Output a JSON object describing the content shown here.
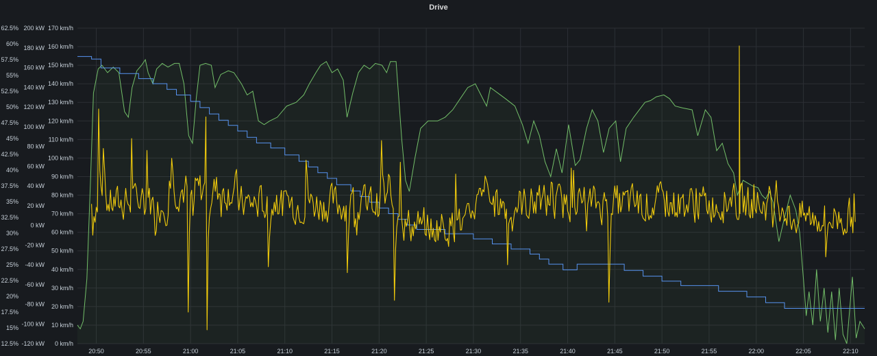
{
  "panel": {
    "title": "Drive"
  },
  "colors": {
    "background": "#181b1f",
    "grid": "#2c2f35",
    "tick_text": "#c7d0d9",
    "power": "#f2cc0c",
    "speed": "#73bf69",
    "battery": "#5794f2"
  },
  "chart_data": {
    "type": "line",
    "title": "Drive",
    "grid": true,
    "legend": "none",
    "x_ticks": [
      "20:50",
      "20:55",
      "21:00",
      "21:05",
      "21:10",
      "21:15",
      "21:20",
      "21:25",
      "21:30",
      "21:35",
      "21:40",
      "21:45",
      "21:50",
      "21:55",
      "22:00",
      "22:05",
      "22:10"
    ],
    "x_range": [
      "20:48",
      "22:11.5"
    ],
    "axes": {
      "battery_percent": {
        "ticks": [
          "62.5%",
          "60%",
          "57.5%",
          "55%",
          "52.5%",
          "50%",
          "47.5%",
          "45%",
          "42.5%",
          "40%",
          "37.5%",
          "35%",
          "32.5%",
          "30%",
          "27.5%",
          "25%",
          "22.5%",
          "20%",
          "17.5%",
          "15%",
          "12.5%"
        ],
        "range": [
          12.5,
          62.5
        ],
        "unit": "%"
      },
      "power": {
        "ticks": [
          "200 kW",
          "180 kW",
          "160 kW",
          "140 kW",
          "120 kW",
          "100 kW",
          "80 kW",
          "60 kW",
          "40 kW",
          "20 kW",
          "0 kW",
          "-20 kW",
          "-40 kW",
          "-60 kW",
          "-80 kW",
          "-100 kW",
          "-120 kW"
        ],
        "range": [
          -120,
          200
        ],
        "unit": "kW"
      },
      "speed": {
        "ticks": [
          "170 km/h",
          "160 km/h",
          "150 km/h",
          "140 km/h",
          "130 km/h",
          "120 km/h",
          "110 km/h",
          "100 km/h",
          "90 km/h",
          "80 km/h",
          "70 km/h",
          "60 km/h",
          "50 km/h",
          "40 km/h",
          "30 km/h",
          "20 km/h",
          "10 km/h",
          "0 km/h"
        ],
        "range": [
          0,
          170
        ],
        "unit": "km/h"
      }
    },
    "series": [
      {
        "key": "battery",
        "axis": "battery_percent",
        "color": "#5794f2",
        "shape": "step",
        "points": [
          [
            "20:48",
            58
          ],
          [
            "20:49.5",
            58
          ],
          [
            "20:49.5",
            57.6
          ],
          [
            "20:50.5",
            57.6
          ],
          [
            "20:50.5",
            56.2
          ],
          [
            "20:52.5",
            56.2
          ],
          [
            "20:52.5",
            55.3
          ],
          [
            "20:54.5",
            55.3
          ],
          [
            "20:54.5",
            54.5
          ],
          [
            "20:56",
            54.5
          ],
          [
            "20:56",
            53.7
          ],
          [
            "20:57.5",
            53.7
          ],
          [
            "20:57.5",
            52.8
          ],
          [
            "20:58.5",
            52.8
          ],
          [
            "20:58.5",
            51.9
          ],
          [
            "21:00",
            51.9
          ],
          [
            "21:00",
            50.9
          ],
          [
            "21:01",
            50.9
          ],
          [
            "21:01",
            49.9
          ],
          [
            "21:02",
            49.9
          ],
          [
            "21:02",
            48.9
          ],
          [
            "21:03",
            48.9
          ],
          [
            "21:03",
            47.9
          ],
          [
            "21:04",
            47.9
          ],
          [
            "21:04",
            47.1
          ],
          [
            "21:05",
            47.1
          ],
          [
            "21:05",
            46.2
          ],
          [
            "21:06",
            46.2
          ],
          [
            "21:06",
            45.2
          ],
          [
            "21:07",
            45.2
          ],
          [
            "21:07",
            44.3
          ],
          [
            "21:08.5",
            44.3
          ],
          [
            "21:08.5",
            43.5
          ],
          [
            "21:10",
            43.5
          ],
          [
            "21:10",
            42.4
          ],
          [
            "21:11.5",
            42.4
          ],
          [
            "21:11.5",
            41.4
          ],
          [
            "21:12.5",
            41.4
          ],
          [
            "21:12.5",
            40.5
          ],
          [
            "21:13.5",
            40.5
          ],
          [
            "21:13.5",
            39.6
          ],
          [
            "21:14.5",
            39.6
          ],
          [
            "21:14.5",
            38.7
          ],
          [
            "21:15.5",
            38.7
          ],
          [
            "21:15.5",
            37.7
          ],
          [
            "21:17",
            37.7
          ],
          [
            "21:17",
            36.7
          ],
          [
            "21:18",
            36.7
          ],
          [
            "21:18",
            35.8
          ],
          [
            "21:19",
            35.8
          ],
          [
            "21:19",
            34.9
          ],
          [
            "21:20",
            34.9
          ],
          [
            "21:20",
            34.0
          ],
          [
            "21:21",
            34.0
          ],
          [
            "21:21",
            33.1
          ],
          [
            "21:22",
            33.1
          ],
          [
            "21:22",
            32.2
          ],
          [
            "21:23",
            32.2
          ],
          [
            "21:23",
            31.3
          ],
          [
            "21:24",
            31.3
          ],
          [
            "21:24",
            30.6
          ],
          [
            "21:27",
            30.6
          ],
          [
            "21:27",
            29.9
          ],
          [
            "21:30",
            29.9
          ],
          [
            "21:30",
            29.1
          ],
          [
            "21:32",
            29.1
          ],
          [
            "21:32",
            28.3
          ],
          [
            "21:34",
            28.3
          ],
          [
            "21:34",
            27.5
          ],
          [
            "21:36",
            27.5
          ],
          [
            "21:36",
            26.7
          ],
          [
            "21:37",
            26.7
          ],
          [
            "21:37",
            25.9
          ],
          [
            "21:38",
            25.9
          ],
          [
            "21:38",
            25.1
          ],
          [
            "21:39.5",
            25.1
          ],
          [
            "21:39.5",
            24.2
          ],
          [
            "21:41",
            24.2
          ],
          [
            "21:41",
            25.1
          ],
          [
            "21:46",
            25.1
          ],
          [
            "21:46",
            24.1
          ],
          [
            "21:48",
            24.1
          ],
          [
            "21:48",
            23.2
          ],
          [
            "21:50",
            23.2
          ],
          [
            "21:50",
            22.4
          ],
          [
            "21:52",
            22.4
          ],
          [
            "21:52",
            21.7
          ],
          [
            "21:56",
            21.7
          ],
          [
            "21:56",
            20.8
          ],
          [
            "21:59",
            20.8
          ],
          [
            "21:59",
            19.9
          ],
          [
            "22:01",
            19.9
          ],
          [
            "22:01",
            19.0
          ],
          [
            "22:03",
            19.0
          ],
          [
            "22:03",
            18.1
          ],
          [
            "22:11.5",
            18.1
          ]
        ]
      },
      {
        "key": "speed",
        "axis": "speed",
        "color": "#73bf69",
        "shape": "line",
        "points": [
          [
            "20:48",
            10
          ],
          [
            "20:48.3",
            8
          ],
          [
            "20:48.6",
            12
          ],
          [
            "20:49",
            35
          ],
          [
            "20:49.4",
            90
          ],
          [
            "20:49.7",
            135
          ],
          [
            "20:50.2",
            148
          ],
          [
            "20:50.6",
            150
          ],
          [
            "20:51.2",
            146
          ],
          [
            "20:51.8",
            149
          ],
          [
            "20:52.4",
            146
          ],
          [
            "20:53",
            125
          ],
          [
            "20:53.4",
            122
          ],
          [
            "20:53.8",
            138
          ],
          [
            "20:54.3",
            147
          ],
          [
            "20:54.8",
            150
          ],
          [
            "20:55.2",
            153
          ],
          [
            "20:55.5",
            146
          ],
          [
            "20:56",
            140
          ],
          [
            "20:56.4",
            148
          ],
          [
            "20:57",
            151
          ],
          [
            "20:57.6",
            149
          ],
          [
            "20:58.3",
            151
          ],
          [
            "20:58.8",
            151
          ],
          [
            "20:59.3",
            140
          ],
          [
            "20:59.8",
            112
          ],
          [
            "21:00.2",
            108
          ],
          [
            "21:00.6",
            132
          ],
          [
            "21:01",
            150
          ],
          [
            "21:01.6",
            151
          ],
          [
            "21:02.2",
            150
          ],
          [
            "21:02.6",
            138
          ],
          [
            "21:03.2",
            145
          ],
          [
            "21:04",
            147
          ],
          [
            "21:04.6",
            146
          ],
          [
            "21:05.4",
            140
          ],
          [
            "21:06",
            134
          ],
          [
            "21:06.6",
            136
          ],
          [
            "21:07.2",
            120
          ],
          [
            "21:07.8",
            118
          ],
          [
            "21:08.4",
            120
          ],
          [
            "21:09.2",
            122
          ],
          [
            "21:10.2",
            128
          ],
          [
            "21:11.2",
            130
          ],
          [
            "21:12",
            134
          ],
          [
            "21:12.6",
            140
          ],
          [
            "21:13.3",
            146
          ],
          [
            "21:13.8",
            150
          ],
          [
            "21:14.4",
            152
          ],
          [
            "21:15",
            146
          ],
          [
            "21:15.6",
            148
          ],
          [
            "21:16.2",
            142
          ],
          [
            "21:16.6",
            122
          ],
          [
            "21:17.2",
            135
          ],
          [
            "21:17.8",
            146
          ],
          [
            "21:18.4",
            150
          ],
          [
            "21:19",
            148
          ],
          [
            "21:19.6",
            151
          ],
          [
            "21:20.3",
            150
          ],
          [
            "21:20.8",
            146
          ],
          [
            "21:21.2",
            152
          ],
          [
            "21:21.8",
            152
          ],
          [
            "21:22.4",
            110
          ],
          [
            "21:22.8",
            88
          ],
          [
            "21:23.2",
            82
          ],
          [
            "21:23.8",
            100
          ],
          [
            "21:24.4",
            116
          ],
          [
            "21:25.2",
            120
          ],
          [
            "21:26.2",
            120
          ],
          [
            "21:27",
            122
          ],
          [
            "21:27.8",
            126
          ],
          [
            "21:28.6",
            132
          ],
          [
            "21:29.4",
            138
          ],
          [
            "21:30.2",
            140
          ],
          [
            "21:30.8",
            134
          ],
          [
            "21:31.4",
            128
          ],
          [
            "21:31.8",
            138
          ],
          [
            "21:32.6",
            135
          ],
          [
            "21:33.4",
            132
          ],
          [
            "21:34.4",
            128
          ],
          [
            "21:35.2",
            118
          ],
          [
            "21:35.8",
            108
          ],
          [
            "21:36.4",
            120
          ],
          [
            "21:37",
            112
          ],
          [
            "21:37.6",
            98
          ],
          [
            "21:38.2",
            90
          ],
          [
            "21:38.8",
            105
          ],
          [
            "21:39.4",
            92
          ],
          [
            "21:40.1",
            118
          ],
          [
            "21:40.8",
            96
          ],
          [
            "21:41.3",
            99
          ],
          [
            "21:42",
            116
          ],
          [
            "21:42.6",
            126
          ],
          [
            "21:43.2",
            120
          ],
          [
            "21:43.8",
            103
          ],
          [
            "21:44.4",
            116
          ],
          [
            "21:45.1",
            120
          ],
          [
            "21:45.6",
            98
          ],
          [
            "21:46.2",
            116
          ],
          [
            "21:47",
            122
          ],
          [
            "21:47.6",
            126
          ],
          [
            "21:48.2",
            130
          ],
          [
            "21:48.8",
            131
          ],
          [
            "21:49.4",
            133
          ],
          [
            "21:50.2",
            134
          ],
          [
            "21:50.8",
            132
          ],
          [
            "21:51.4",
            128
          ],
          [
            "21:52.2",
            127
          ],
          [
            "21:53.2",
            126
          ],
          [
            "21:53.8",
            112
          ],
          [
            "21:54.6",
            126
          ],
          [
            "21:55.2",
            122
          ],
          [
            "21:55.8",
            104
          ],
          [
            "21:56.4",
            108
          ],
          [
            "21:57",
            97
          ],
          [
            "21:57.6",
            92
          ],
          [
            "21:58",
            80
          ],
          [
            "21:58.6",
            88
          ],
          [
            "21:59.6",
            85
          ],
          [
            "22:00.2",
            84
          ],
          [
            "22:00.6",
            80
          ],
          [
            "22:01",
            78
          ],
          [
            "22:01.4",
            82
          ],
          [
            "22:01.8",
            76
          ],
          [
            "22:02.4",
            55
          ],
          [
            "22:03",
            68
          ],
          [
            "22:03.6",
            80
          ],
          [
            "22:04.2",
            72
          ],
          [
            "22:04.6",
            60
          ],
          [
            "22:05",
            35
          ],
          [
            "22:05.3",
            15
          ],
          [
            "22:05.6",
            28
          ],
          [
            "22:06",
            10
          ],
          [
            "22:06.4",
            40
          ],
          [
            "22:06.8",
            12
          ],
          [
            "22:07.2",
            30
          ],
          [
            "22:07.6",
            6
          ],
          [
            "22:08",
            28
          ],
          [
            "22:08.4",
            2
          ],
          [
            "22:08.8",
            30
          ],
          [
            "22:09.2",
            5
          ],
          [
            "22:09.6",
            0
          ],
          [
            "22:10.2",
            36
          ],
          [
            "22:10.6",
            3
          ],
          [
            "22:11",
            12
          ],
          [
            "22:11.5",
            8
          ]
        ]
      },
      {
        "key": "power",
        "axis": "power",
        "color": "#f2cc0c",
        "shape": "line",
        "generated": {
          "step_minutes": 0.125,
          "mean_kW": 22,
          "amplitude_kW": 26,
          "seed": 7
        },
        "spikes": [
          [
            "20:49.6",
            -10
          ],
          [
            "20:50.2",
            118
          ],
          [
            "20:50.8",
            78
          ],
          [
            "20:53.8",
            88
          ],
          [
            "20:55.4",
            76
          ],
          [
            "20:58",
            68
          ],
          [
            "20:59.8",
            -88
          ],
          [
            "21:00.2",
            10
          ],
          [
            "21:01.6",
            110
          ],
          [
            "21:01.7",
            -106
          ],
          [
            "21:08.2",
            -42
          ],
          [
            "21:12.2",
            66
          ],
          [
            "21:16.6",
            -48
          ],
          [
            "21:20.2",
            86
          ],
          [
            "21:21.6",
            -76
          ],
          [
            "21:22.2",
            64
          ],
          [
            "21:25.6",
            -12
          ],
          [
            "21:28.1",
            52
          ],
          [
            "21:31.3",
            50
          ],
          [
            "21:33.6",
            -40
          ],
          [
            "21:38.2",
            44
          ],
          [
            "21:40.4",
            58
          ],
          [
            "21:44.4",
            -78
          ],
          [
            "22:07.4",
            -32
          ]
        ],
        "big_spike": [
          "21:58.2",
          182
        ]
      }
    ]
  }
}
